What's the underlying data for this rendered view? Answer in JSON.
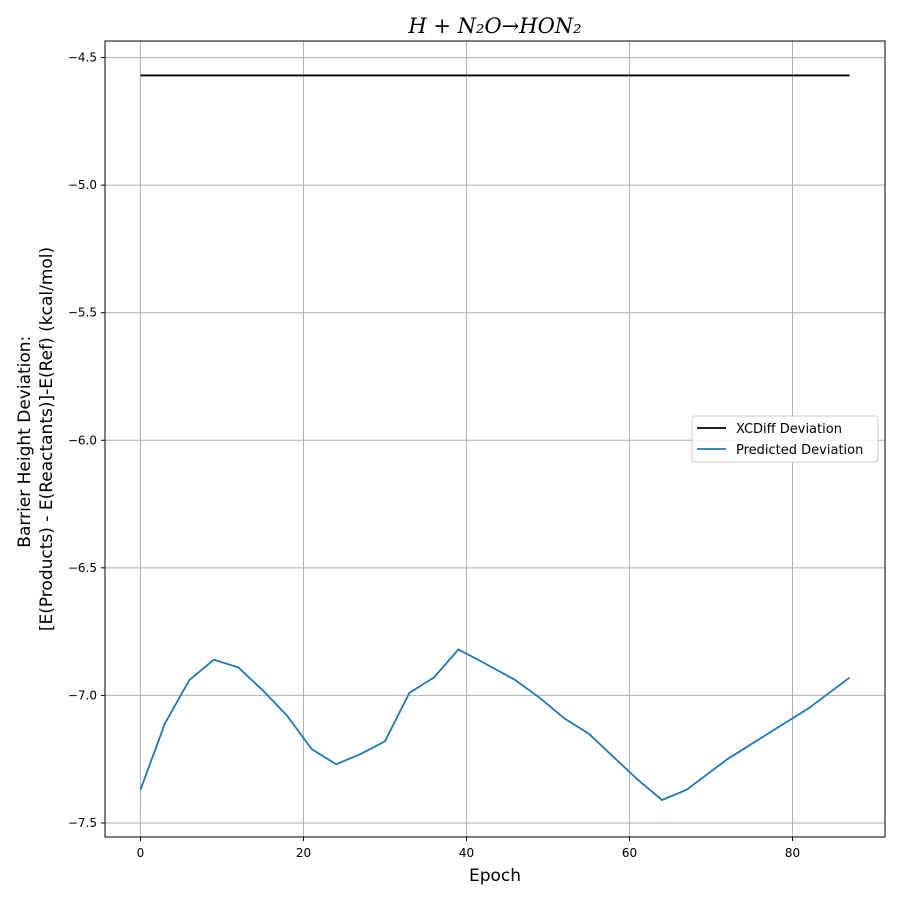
{
  "chart_data": {
    "type": "line",
    "title": "H + N₂O→HON₂",
    "xlabel": "Epoch",
    "ylabel_lines": [
      "Barrier Height Deviation:",
      "[E(Products) - E(Reactants)]-E(Ref) (kcal/mol)"
    ],
    "xlim": [
      -4.35,
      91.35
    ],
    "ylim": [
      -7.555,
      -4.435
    ],
    "xticks": [
      0,
      20,
      40,
      60,
      80
    ],
    "xtick_labels": [
      "0",
      "20",
      "40",
      "60",
      "80"
    ],
    "yticks": [
      -4.5,
      -5.0,
      -5.5,
      -6.0,
      -6.5,
      -7.0,
      -7.5
    ],
    "ytick_labels": [
      "−4.5",
      "−5.0",
      "−5.5",
      "−6.0",
      "−6.5",
      "−7.0",
      "−7.5"
    ],
    "grid": true,
    "legend_position": "center-right",
    "series": [
      {
        "name": "XCDiff Deviation",
        "color": "#000000",
        "x": [
          0,
          87
        ],
        "y": [
          -4.57,
          -4.57
        ]
      },
      {
        "name": "Predicted Deviation",
        "color": "#1f77b4",
        "x": [
          0,
          3,
          6,
          9,
          12,
          15,
          18,
          21,
          24,
          27,
          30,
          33,
          36,
          39,
          42,
          46,
          49,
          52,
          55,
          58,
          61,
          64,
          67,
          72,
          77,
          82,
          87
        ],
        "y": [
          -7.37,
          -7.11,
          -6.94,
          -6.86,
          -6.89,
          -6.98,
          -7.08,
          -7.21,
          -7.27,
          -7.23,
          -7.18,
          -6.99,
          -6.93,
          -6.82,
          -6.87,
          -6.94,
          -7.01,
          -7.09,
          -7.15,
          -7.24,
          -7.33,
          -7.41,
          -7.37,
          -7.25,
          -7.15,
          -7.05,
          -6.93
        ]
      }
    ]
  }
}
